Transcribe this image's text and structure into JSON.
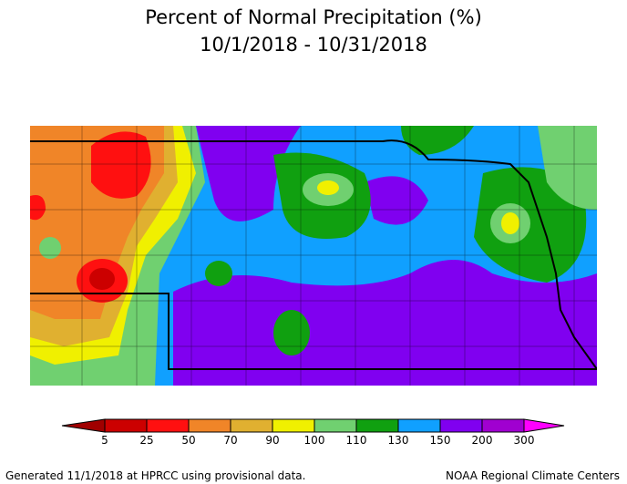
{
  "header": {
    "title": "Percent of Normal Precipitation (%)",
    "subtitle": "10/1/2018 - 10/31/2018"
  },
  "legend": {
    "labels": [
      "5",
      "25",
      "50",
      "70",
      "90",
      "100",
      "110",
      "130",
      "150",
      "200",
      "300"
    ],
    "colors": [
      "#a00000",
      "#cc0000",
      "#ff1010",
      "#f08528",
      "#e0b030",
      "#f0f000",
      "#70d070",
      "#10a010",
      "#10a0ff",
      "#8000f0",
      "#a000d0",
      "#ff00ff"
    ]
  },
  "footer": {
    "left": "Generated 11/1/2018 at HPRCC using provisional data.",
    "right": "NOAA Regional Climate Centers"
  }
}
